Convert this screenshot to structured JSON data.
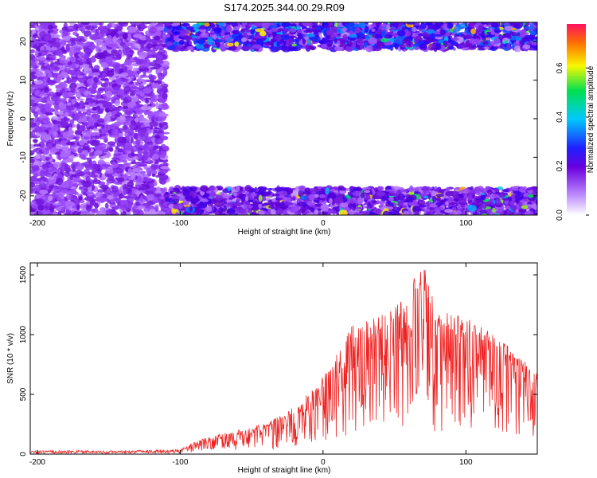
{
  "chart_data": [
    {
      "type": "heatmap",
      "title": "S174.2025.344.00.29.R09",
      "xlabel": "Height of straight line (km)",
      "ylabel": "Frequency (Hz)",
      "xlim": [
        -205,
        150
      ],
      "ylim": [
        -25,
        25
      ],
      "x_ticks": [
        -200,
        -100,
        0,
        100
      ],
      "y_ticks": [
        20,
        10,
        0,
        -10,
        -20
      ],
      "x_tick_labels": [
        "-200",
        "-100",
        "0",
        "100"
      ],
      "y_tick_labels": [
        "20",
        "10",
        "0",
        "-10",
        "-20"
      ],
      "colorbar": {
        "label": "Normalized spectral amplitude",
        "ticks": [
          0.0,
          0.2,
          0.4,
          0.6
        ],
        "tick_labels": [
          "0.0",
          "0.2",
          "0.4",
          "0.6"
        ],
        "range": [
          0,
          0.78
        ],
        "colors": [
          "#ffffff",
          "#a050ff",
          "#6000d0",
          "#2000ff",
          "#00c0ff",
          "#00e060",
          "#ffff00",
          "#ff6000",
          "#ff0040"
        ]
      },
      "regions": [
        {
          "x": [
            -205,
            -110
          ],
          "y": [
            -25,
            25
          ],
          "level": 0.1
        },
        {
          "x": [
            -110,
            150
          ],
          "y": [
            18,
            25
          ],
          "level": 0.25
        },
        {
          "x": [
            -110,
            150
          ],
          "y": [
            -25,
            -18
          ],
          "level": 0.15
        }
      ]
    },
    {
      "type": "line",
      "xlabel": "Height of straight line (km)",
      "ylabel": "SNR (10 * v/v)",
      "xlim": [
        -205,
        150
      ],
      "ylim": [
        0,
        1600
      ],
      "x_ticks": [
        -200,
        -100,
        0,
        100
      ],
      "y_ticks": [
        0,
        500,
        1000,
        1500
      ],
      "x_tick_labels": [
        "-200",
        "-100",
        "0",
        "100"
      ],
      "y_tick_labels": [
        "0",
        "500",
        "1000",
        "1500"
      ],
      "color": "#ee2222",
      "envelope": {
        "x": [
          -205,
          -150,
          -100,
          -90,
          -80,
          -60,
          -40,
          -20,
          0,
          10,
          20,
          40,
          50,
          60,
          70,
          80,
          100,
          120,
          140,
          150
        ],
        "y": [
          30,
          30,
          40,
          100,
          150,
          200,
          260,
          400,
          650,
          850,
          1100,
          1150,
          1250,
          1400,
          1600,
          1200,
          1150,
          1000,
          800,
          700
        ]
      }
    }
  ]
}
